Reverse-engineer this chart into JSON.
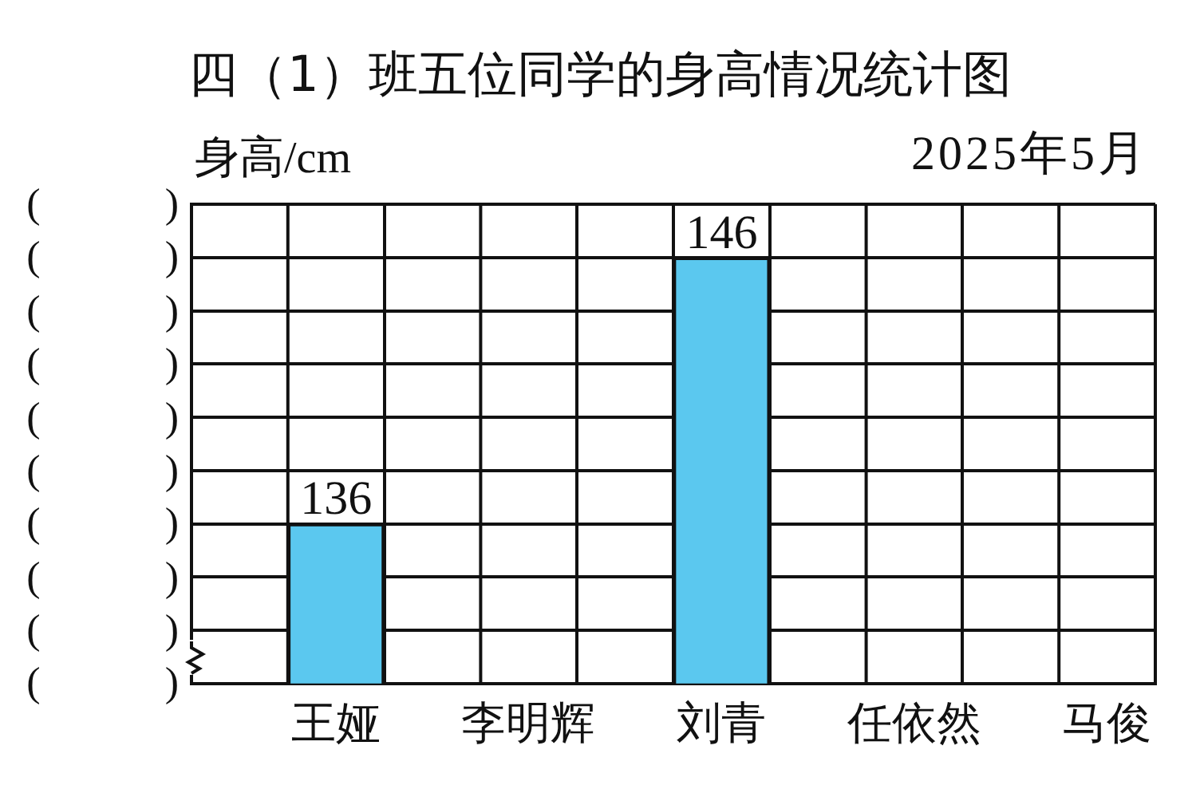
{
  "chart_data": {
    "type": "bar",
    "title": "四（1）班五位同学的身高情况统计图",
    "subtitle": "2025年5月",
    "ylabel": "身高/cm",
    "categories": [
      "王娅",
      "李明辉",
      "刘青",
      "任依然",
      "马俊"
    ],
    "values": [
      136,
      null,
      146,
      null,
      null
    ],
    "color": "#5bc8ef",
    "ylim": [
      130,
      148
    ],
    "annotations": [
      "(　　　)",
      "(　　　)",
      "(　　　)",
      "(　　　)",
      "(　　　)",
      "(　　　)",
      "(　　　)",
      "(　　　)",
      "(　　　)",
      "(　　　)"
    ],
    "grid": true,
    "data_labels": true
  }
}
